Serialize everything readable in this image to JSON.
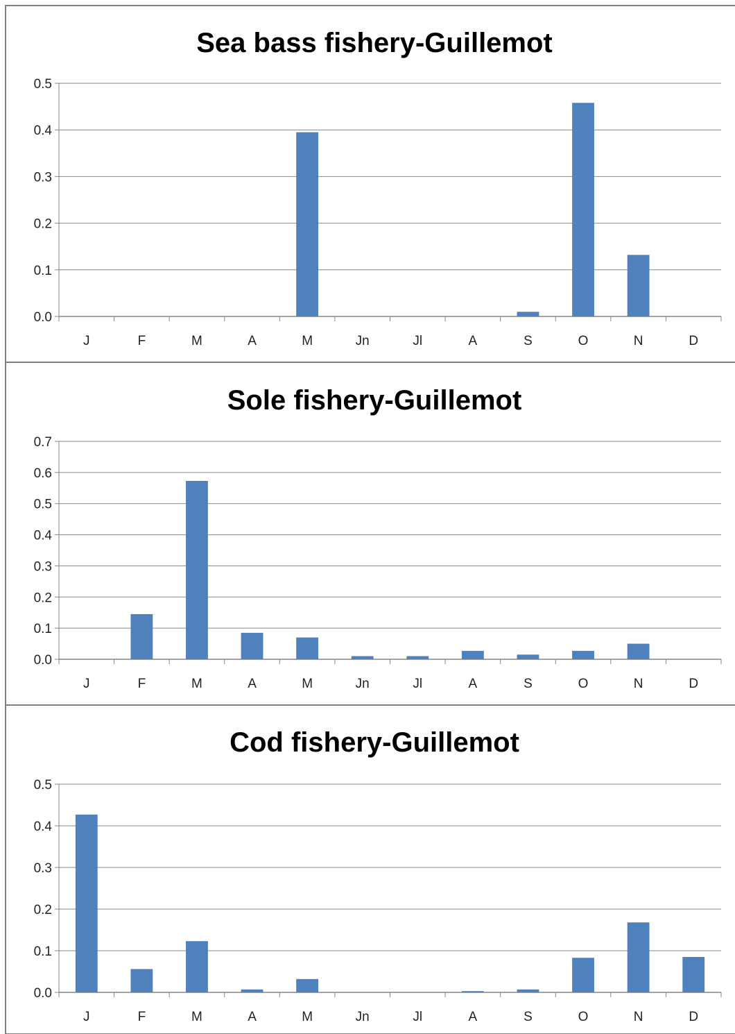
{
  "chart_data": [
    {
      "type": "bar",
      "title": "Sea bass fishery-Guillemot",
      "categories": [
        "J",
        "F",
        "M",
        "A",
        "M",
        "Jn",
        "Jl",
        "A",
        "S",
        "O",
        "N",
        "D"
      ],
      "values": [
        0,
        0,
        0,
        0,
        0.395,
        0,
        0,
        0,
        0.01,
        0.458,
        0.132,
        0
      ],
      "ylim": [
        0,
        0.5
      ],
      "yticks": [
        "0.0",
        "0.1",
        "0.2",
        "0.3",
        "0.4",
        "0.5"
      ],
      "grid": true,
      "color": "#4F81BD"
    },
    {
      "type": "bar",
      "title": "Sole fishery-Guillemot",
      "categories": [
        "J",
        "F",
        "M",
        "A",
        "M",
        "Jn",
        "Jl",
        "A",
        "S",
        "O",
        "N",
        "D"
      ],
      "values": [
        0,
        0.145,
        0.573,
        0.085,
        0.07,
        0.01,
        0.01,
        0.027,
        0.015,
        0.027,
        0.05,
        0
      ],
      "ylim": [
        0,
        0.7
      ],
      "yticks": [
        "0.0",
        "0.1",
        "0.2",
        "0.3",
        "0.4",
        "0.5",
        "0.6",
        "0.7"
      ],
      "grid": true,
      "color": "#4F81BD"
    },
    {
      "type": "bar",
      "title": "Cod fishery-Guillemot",
      "categories": [
        "J",
        "F",
        "M",
        "A",
        "M",
        "Jn",
        "Jl",
        "A",
        "S",
        "O",
        "N",
        "D"
      ],
      "values": [
        0.427,
        0.056,
        0.123,
        0.007,
        0.032,
        0,
        0,
        0.003,
        0.007,
        0.083,
        0.168,
        0.085
      ],
      "ylim": [
        0,
        0.5
      ],
      "yticks": [
        "0.0",
        "0.1",
        "0.2",
        "0.3",
        "0.4",
        "0.5"
      ],
      "grid": true,
      "color": "#4F81BD"
    }
  ]
}
